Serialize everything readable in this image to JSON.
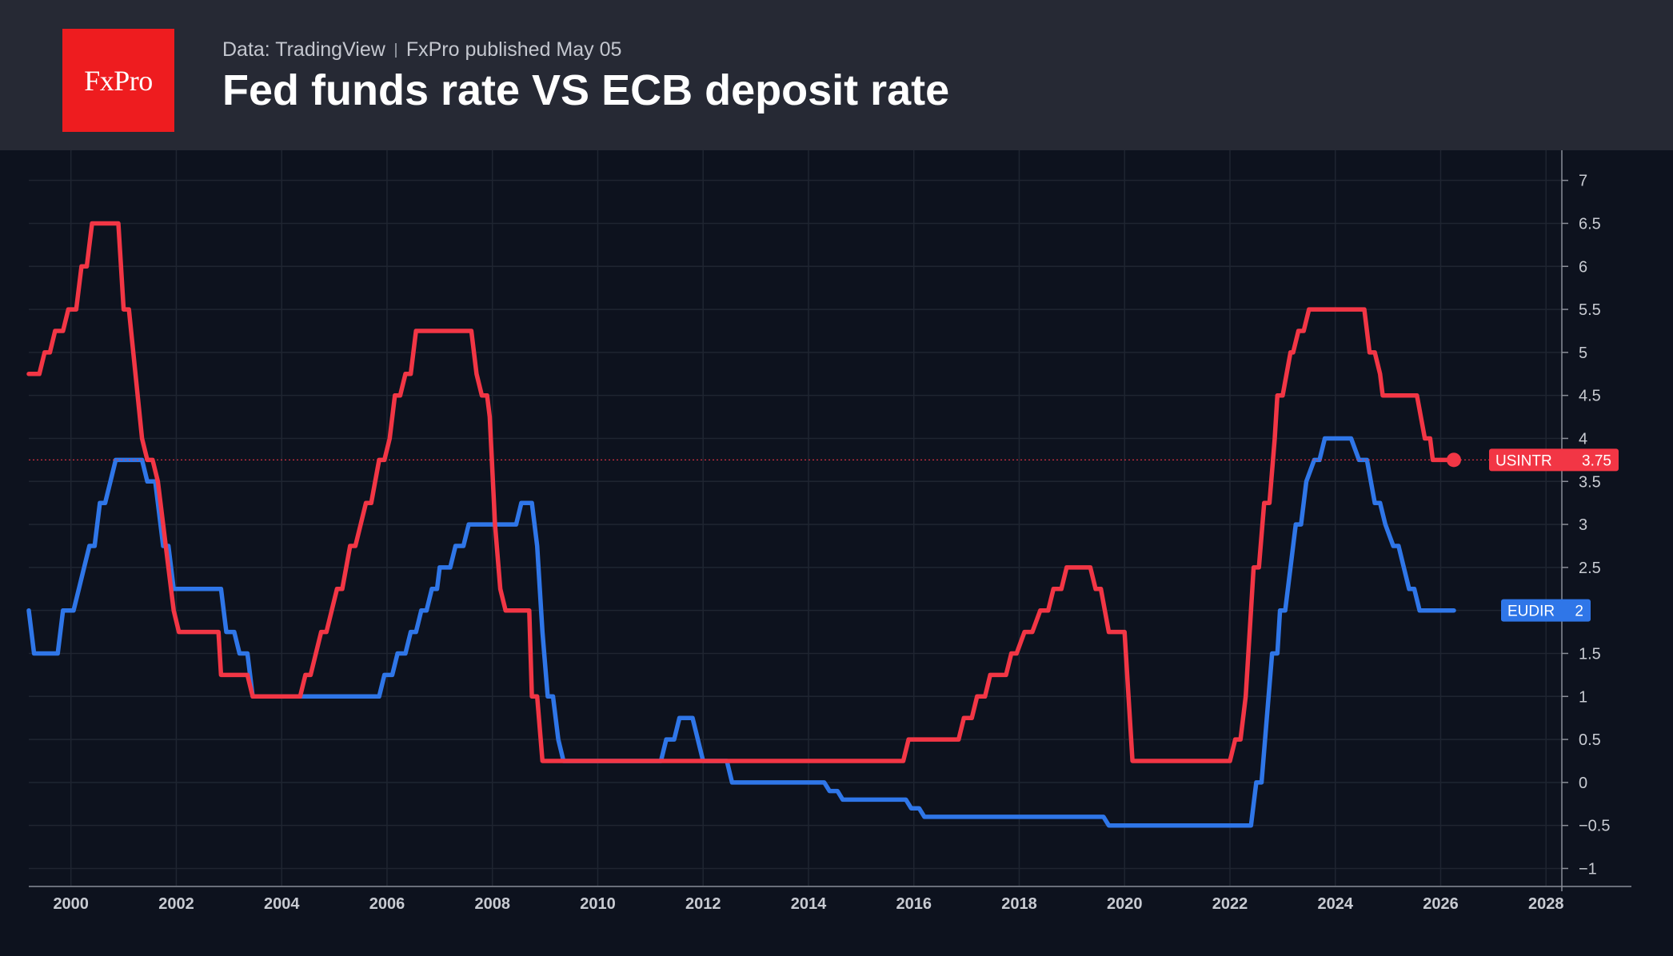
{
  "header": {
    "logo_text": "FxPro",
    "source": "Data: TradingView",
    "published": "FxPro published May 05",
    "title": "Fed funds rate VS ECB deposit rate"
  },
  "colors": {
    "background": "#0d121e",
    "header": "#262934",
    "logo": "#ee1c1f",
    "usintr": "#f23645",
    "eudir": "#2f76e8",
    "grid": "#1f2531"
  },
  "chart_data": {
    "type": "line",
    "title": "Fed funds rate VS ECB deposit rate",
    "xlim": [
      1999.2,
      2028.3
    ],
    "ylim": [
      -1.2,
      7.35
    ],
    "x_ticks": [
      "2000",
      "2002",
      "2004",
      "2006",
      "2008",
      "2010",
      "2012",
      "2014",
      "2016",
      "2018",
      "2020",
      "2022",
      "2024",
      "2026",
      "2028"
    ],
    "y_ticks": [
      "7",
      "6.5",
      "6",
      "5.5",
      "5",
      "4.5",
      "4",
      "3.5",
      "3",
      "2.5",
      "2",
      "1.5",
      "1",
      "0.5",
      "0",
      "−0.5",
      "−1"
    ],
    "grid": true,
    "series": [
      {
        "name": "USINTR",
        "color": "#f23645",
        "last_value": "3.75",
        "points": [
          [
            1999.2,
            4.75
          ],
          [
            1999.4,
            4.75
          ],
          [
            1999.5,
            5.0
          ],
          [
            1999.6,
            5.0
          ],
          [
            1999.7,
            5.25
          ],
          [
            1999.85,
            5.25
          ],
          [
            1999.95,
            5.5
          ],
          [
            2000.1,
            5.5
          ],
          [
            2000.2,
            6.0
          ],
          [
            2000.3,
            6.0
          ],
          [
            2000.4,
            6.5
          ],
          [
            2000.9,
            6.5
          ],
          [
            2001.0,
            5.5
          ],
          [
            2001.1,
            5.5
          ],
          [
            2001.35,
            4.0
          ],
          [
            2001.45,
            3.75
          ],
          [
            2001.55,
            3.75
          ],
          [
            2001.65,
            3.5
          ],
          [
            2001.75,
            3.0
          ],
          [
            2001.85,
            2.5
          ],
          [
            2001.95,
            2.0
          ],
          [
            2002.05,
            1.75
          ],
          [
            2002.8,
            1.75
          ],
          [
            2002.85,
            1.25
          ],
          [
            2003.35,
            1.25
          ],
          [
            2003.45,
            1.0
          ],
          [
            2004.35,
            1.0
          ],
          [
            2004.45,
            1.25
          ],
          [
            2004.55,
            1.25
          ],
          [
            2004.65,
            1.5
          ],
          [
            2004.75,
            1.75
          ],
          [
            2004.85,
            1.75
          ],
          [
            2004.95,
            2.0
          ],
          [
            2005.05,
            2.25
          ],
          [
            2005.15,
            2.25
          ],
          [
            2005.3,
            2.75
          ],
          [
            2005.4,
            2.75
          ],
          [
            2005.6,
            3.25
          ],
          [
            2005.7,
            3.25
          ],
          [
            2005.85,
            3.75
          ],
          [
            2005.95,
            3.75
          ],
          [
            2006.05,
            4.0
          ],
          [
            2006.15,
            4.5
          ],
          [
            2006.25,
            4.5
          ],
          [
            2006.35,
            4.75
          ],
          [
            2006.45,
            4.75
          ],
          [
            2006.55,
            5.25
          ],
          [
            2007.6,
            5.25
          ],
          [
            2007.7,
            4.75
          ],
          [
            2007.8,
            4.5
          ],
          [
            2007.9,
            4.5
          ],
          [
            2007.95,
            4.25
          ],
          [
            2008.05,
            3.0
          ],
          [
            2008.15,
            2.25
          ],
          [
            2008.25,
            2.0
          ],
          [
            2008.7,
            2.0
          ],
          [
            2008.75,
            1.0
          ],
          [
            2008.85,
            1.0
          ],
          [
            2008.95,
            0.25
          ],
          [
            2015.8,
            0.25
          ],
          [
            2015.9,
            0.5
          ],
          [
            2016.85,
            0.5
          ],
          [
            2016.95,
            0.75
          ],
          [
            2017.1,
            0.75
          ],
          [
            2017.2,
            1.0
          ],
          [
            2017.35,
            1.0
          ],
          [
            2017.45,
            1.25
          ],
          [
            2017.75,
            1.25
          ],
          [
            2017.85,
            1.5
          ],
          [
            2017.95,
            1.5
          ],
          [
            2018.1,
            1.75
          ],
          [
            2018.25,
            1.75
          ],
          [
            2018.4,
            2.0
          ],
          [
            2018.55,
            2.0
          ],
          [
            2018.65,
            2.25
          ],
          [
            2018.8,
            2.25
          ],
          [
            2018.9,
            2.5
          ],
          [
            2019.35,
            2.5
          ],
          [
            2019.45,
            2.25
          ],
          [
            2019.55,
            2.25
          ],
          [
            2019.7,
            1.75
          ],
          [
            2020.0,
            1.75
          ],
          [
            2020.15,
            0.25
          ],
          [
            2022.0,
            0.25
          ],
          [
            2022.1,
            0.5
          ],
          [
            2022.2,
            0.5
          ],
          [
            2022.3,
            1.0
          ],
          [
            2022.45,
            2.5
          ],
          [
            2022.55,
            2.5
          ],
          [
            2022.65,
            3.25
          ],
          [
            2022.75,
            3.25
          ],
          [
            2022.85,
            4.0
          ],
          [
            2022.9,
            4.5
          ],
          [
            2023.0,
            4.5
          ],
          [
            2023.15,
            5.0
          ],
          [
            2023.2,
            5.0
          ],
          [
            2023.3,
            5.25
          ],
          [
            2023.4,
            5.25
          ],
          [
            2023.5,
            5.5
          ],
          [
            2024.55,
            5.5
          ],
          [
            2024.65,
            5.0
          ],
          [
            2024.75,
            5.0
          ],
          [
            2024.85,
            4.75
          ],
          [
            2024.9,
            4.5
          ],
          [
            2025.55,
            4.5
          ],
          [
            2025.7,
            4.0
          ],
          [
            2025.8,
            4.0
          ],
          [
            2025.85,
            3.75
          ],
          [
            2026.1,
            3.75
          ],
          [
            2026.25,
            3.75
          ]
        ]
      },
      {
        "name": "EUDIR",
        "color": "#2f76e8",
        "last_value": "2",
        "points": [
          [
            1999.2,
            2.0
          ],
          [
            1999.3,
            1.5
          ],
          [
            1999.75,
            1.5
          ],
          [
            1999.85,
            2.0
          ],
          [
            2000.05,
            2.0
          ],
          [
            2000.15,
            2.25
          ],
          [
            2000.25,
            2.5
          ],
          [
            2000.35,
            2.75
          ],
          [
            2000.45,
            2.75
          ],
          [
            2000.55,
            3.25
          ],
          [
            2000.65,
            3.25
          ],
          [
            2000.75,
            3.5
          ],
          [
            2000.85,
            3.75
          ],
          [
            2001.35,
            3.75
          ],
          [
            2001.45,
            3.5
          ],
          [
            2001.6,
            3.5
          ],
          [
            2001.75,
            2.75
          ],
          [
            2001.85,
            2.75
          ],
          [
            2001.95,
            2.25
          ],
          [
            2002.85,
            2.25
          ],
          [
            2002.95,
            1.75
          ],
          [
            2003.1,
            1.75
          ],
          [
            2003.2,
            1.5
          ],
          [
            2003.35,
            1.5
          ],
          [
            2003.45,
            1.0
          ],
          [
            2005.85,
            1.0
          ],
          [
            2005.95,
            1.25
          ],
          [
            2006.1,
            1.25
          ],
          [
            2006.2,
            1.5
          ],
          [
            2006.35,
            1.5
          ],
          [
            2006.45,
            1.75
          ],
          [
            2006.55,
            1.75
          ],
          [
            2006.65,
            2.0
          ],
          [
            2006.75,
            2.0
          ],
          [
            2006.85,
            2.25
          ],
          [
            2006.95,
            2.25
          ],
          [
            2007.0,
            2.5
          ],
          [
            2007.2,
            2.5
          ],
          [
            2007.3,
            2.75
          ],
          [
            2007.45,
            2.75
          ],
          [
            2007.55,
            3.0
          ],
          [
            2008.45,
            3.0
          ],
          [
            2008.55,
            3.25
          ],
          [
            2008.75,
            3.25
          ],
          [
            2008.85,
            2.75
          ],
          [
            2008.95,
            1.75
          ],
          [
            2009.05,
            1.0
          ],
          [
            2009.15,
            1.0
          ],
          [
            2009.25,
            0.5
          ],
          [
            2009.35,
            0.25
          ],
          [
            2011.2,
            0.25
          ],
          [
            2011.3,
            0.5
          ],
          [
            2011.45,
            0.5
          ],
          [
            2011.55,
            0.75
          ],
          [
            2011.8,
            0.75
          ],
          [
            2011.9,
            0.5
          ],
          [
            2012.0,
            0.25
          ],
          [
            2012.45,
            0.25
          ],
          [
            2012.55,
            0.0
          ],
          [
            2014.3,
            0.0
          ],
          [
            2014.4,
            -0.1
          ],
          [
            2014.55,
            -0.1
          ],
          [
            2014.65,
            -0.2
          ],
          [
            2015.85,
            -0.2
          ],
          [
            2015.95,
            -0.3
          ],
          [
            2016.1,
            -0.3
          ],
          [
            2016.2,
            -0.4
          ],
          [
            2019.6,
            -0.4
          ],
          [
            2019.7,
            -0.5
          ],
          [
            2022.4,
            -0.5
          ],
          [
            2022.5,
            0.0
          ],
          [
            2022.6,
            0.0
          ],
          [
            2022.7,
            0.75
          ],
          [
            2022.8,
            1.5
          ],
          [
            2022.9,
            1.5
          ],
          [
            2022.95,
            2.0
          ],
          [
            2023.05,
            2.0
          ],
          [
            2023.15,
            2.5
          ],
          [
            2023.25,
            3.0
          ],
          [
            2023.35,
            3.0
          ],
          [
            2023.45,
            3.5
          ],
          [
            2023.6,
            3.75
          ],
          [
            2023.7,
            3.75
          ],
          [
            2023.8,
            4.0
          ],
          [
            2024.3,
            4.0
          ],
          [
            2024.45,
            3.75
          ],
          [
            2024.6,
            3.75
          ],
          [
            2024.75,
            3.25
          ],
          [
            2024.85,
            3.25
          ],
          [
            2024.95,
            3.0
          ],
          [
            2025.1,
            2.75
          ],
          [
            2025.2,
            2.75
          ],
          [
            2025.3,
            2.5
          ],
          [
            2025.4,
            2.25
          ],
          [
            2025.5,
            2.25
          ],
          [
            2025.6,
            2.0
          ],
          [
            2026.25,
            2.0
          ]
        ]
      }
    ]
  }
}
